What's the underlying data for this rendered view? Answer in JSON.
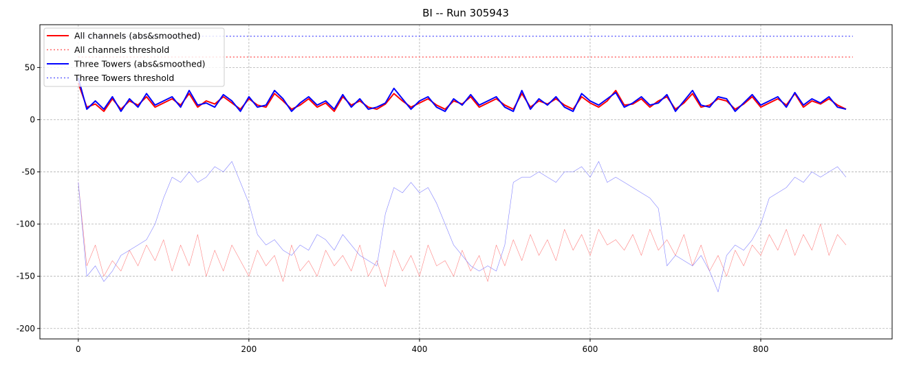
{
  "chart_data": {
    "type": "line",
    "title": "BI -- Run 305943",
    "xlabel": "",
    "ylabel": "",
    "xlim": [
      -45,
      954
    ],
    "ylim": [
      -210,
      91
    ],
    "xticks": [
      0,
      200,
      400,
      600,
      800
    ],
    "yticks": [
      50,
      0,
      -50,
      -100,
      -150,
      -200
    ],
    "grid": true,
    "legend_position": "top-left",
    "x_step": 10,
    "series": [
      {
        "name": "All channels (abs&smoothed)",
        "color": "#ff0000",
        "style": "solid",
        "width": 2,
        "in_legend": true,
        "values": [
          35,
          12,
          15,
          8,
          20,
          10,
          18,
          14,
          22,
          12,
          16,
          20,
          14,
          25,
          12,
          18,
          15,
          22,
          16,
          10,
          20,
          14,
          12,
          25,
          18,
          10,
          14,
          20,
          12,
          16,
          8,
          22,
          14,
          18,
          12,
          10,
          15,
          25,
          18,
          12,
          16,
          20,
          14,
          10,
          18,
          15,
          22,
          12,
          16,
          20,
          14,
          10,
          25,
          12,
          18,
          15,
          20,
          14,
          10,
          22,
          16,
          12,
          18,
          28,
          14,
          15,
          20,
          12,
          18,
          22,
          10,
          16,
          25,
          12,
          14,
          20,
          18,
          10,
          15,
          22,
          12,
          16,
          20,
          14,
          25,
          12,
          18,
          15,
          20,
          14,
          10
        ]
      },
      {
        "name": "All channels threshold",
        "color": "#ff6666",
        "style": "dotted",
        "width": 1.5,
        "in_legend": true,
        "constant": 60,
        "x_range": [
          0,
          908
        ]
      },
      {
        "name": "Three Towers (abs&smoothed)",
        "color": "#0000ff",
        "style": "solid",
        "width": 2,
        "in_legend": true,
        "values": [
          40,
          10,
          18,
          10,
          22,
          8,
          20,
          12,
          25,
          14,
          18,
          22,
          12,
          28,
          14,
          16,
          12,
          24,
          18,
          8,
          22,
          12,
          14,
          28,
          20,
          8,
          16,
          22,
          14,
          18,
          10,
          24,
          12,
          20,
          10,
          12,
          16,
          30,
          20,
          10,
          18,
          22,
          12,
          8,
          20,
          14,
          24,
          14,
          18,
          22,
          12,
          8,
          28,
          10,
          20,
          14,
          22,
          12,
          8,
          25,
          18,
          14,
          20,
          26,
          12,
          16,
          22,
          14,
          16,
          24,
          8,
          18,
          28,
          14,
          12,
          22,
          20,
          8,
          16,
          24,
          14,
          18,
          22,
          12,
          26,
          14,
          20,
          16,
          22,
          12,
          10
        ]
      },
      {
        "name": "Three Towers threshold",
        "color": "#6666ff",
        "style": "dotted",
        "width": 1.5,
        "in_legend": true,
        "constant": 80,
        "x_range": [
          0,
          908
        ]
      },
      {
        "name": "All channels (raw)",
        "color": "#ff8080",
        "style": "solid",
        "width": 0.6,
        "in_legend": false,
        "values": [
          -60,
          -140,
          -120,
          -150,
          -135,
          -145,
          -125,
          -140,
          -120,
          -135,
          -115,
          -145,
          -120,
          -140,
          -110,
          -150,
          -125,
          -145,
          -120,
          -135,
          -150,
          -125,
          -140,
          -130,
          -155,
          -120,
          -145,
          -135,
          -150,
          -125,
          -140,
          -130,
          -145,
          -120,
          -150,
          -135,
          -160,
          -125,
          -145,
          -130,
          -150,
          -120,
          -140,
          -135,
          -150,
          -125,
          -145,
          -130,
          -155,
          -120,
          -140,
          -115,
          -135,
          -110,
          -130,
          -115,
          -135,
          -105,
          -125,
          -110,
          -130,
          -105,
          -120,
          -115,
          -125,
          -110,
          -130,
          -105,
          -125,
          -115,
          -130,
          -110,
          -140,
          -120,
          -145,
          -130,
          -150,
          -125,
          -140,
          -120,
          -130,
          -110,
          -125,
          -105,
          -130,
          -110,
          -125,
          -100,
          -130,
          -110,
          -120
        ]
      },
      {
        "name": "Three Towers (raw)",
        "color": "#8080ff",
        "style": "solid",
        "width": 0.6,
        "in_legend": false,
        "values": [
          -60,
          -150,
          -140,
          -155,
          -145,
          -130,
          -125,
          -120,
          -115,
          -100,
          -75,
          -55,
          -60,
          -50,
          -60,
          -55,
          -45,
          -50,
          -40,
          -60,
          -80,
          -110,
          -120,
          -115,
          -125,
          -130,
          -120,
          -125,
          -110,
          -115,
          -125,
          -110,
          -120,
          -130,
          -135,
          -140,
          -90,
          -65,
          -70,
          -60,
          -70,
          -65,
          -80,
          -100,
          -120,
          -130,
          -140,
          -145,
          -140,
          -145,
          -120,
          -60,
          -55,
          -55,
          -50,
          -55,
          -60,
          -50,
          -50,
          -45,
          -55,
          -40,
          -60,
          -55,
          -60,
          -65,
          -70,
          -75,
          -85,
          -140,
          -130,
          -135,
          -140,
          -130,
          -145,
          -165,
          -130,
          -120,
          -125,
          -115,
          -100,
          -75,
          -70,
          -65,
          -55,
          -60,
          -50,
          -55,
          -50,
          -45,
          -55
        ]
      }
    ]
  }
}
